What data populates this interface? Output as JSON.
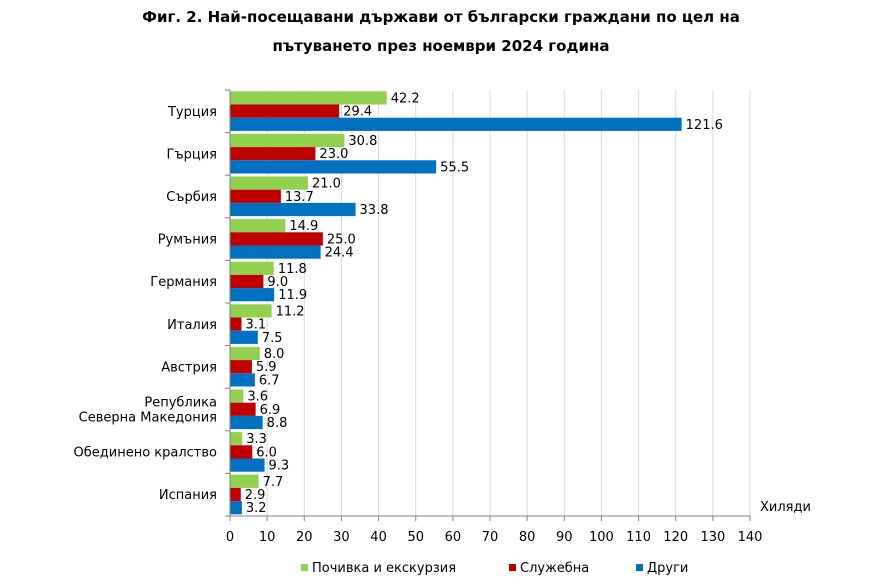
{
  "title_line1": "Фиг. 2. Най-посещавани държави от български граждани по цел на",
  "title_line2": "пътуването през ноември 2024 година",
  "chart_data": {
    "type": "bar",
    "orientation": "horizontal",
    "categories": [
      "Турция",
      "Гърция",
      "Сърбия",
      "Румъния",
      "Германия",
      "Италия",
      "Австрия",
      "Република Северна Македония",
      "Обединено кралство",
      "Испания"
    ],
    "category_label_lines": [
      [
        "Турция"
      ],
      [
        "Гърция"
      ],
      [
        "Сърбия"
      ],
      [
        "Румъния"
      ],
      [
        "Германия"
      ],
      [
        "Италия"
      ],
      [
        "Австрия"
      ],
      [
        "Република",
        "Северна Македония"
      ],
      [
        "Обединено кралство"
      ],
      [
        "Испания"
      ]
    ],
    "series": [
      {
        "name": "Почивка и екскурзия",
        "color": "#92D050",
        "values": [
          42.2,
          30.8,
          21.0,
          14.9,
          11.8,
          11.2,
          8.0,
          3.6,
          3.3,
          7.7
        ],
        "labels": [
          "42.2",
          "30.8",
          "21.0",
          "14.9",
          "11.8",
          "11.2",
          "8.0",
          "3.6",
          "3.3",
          "7.7"
        ]
      },
      {
        "name": "Служебна",
        "color": "#C00000",
        "values": [
          29.4,
          23.0,
          13.7,
          25.0,
          9.0,
          3.1,
          5.9,
          6.9,
          6.0,
          2.9
        ],
        "labels": [
          "29.4",
          "23.0",
          "13.7",
          "25.0",
          "9.0",
          "3.1",
          "5.9",
          "6.9",
          "6.0",
          "2.9"
        ]
      },
      {
        "name": "Други",
        "color": "#0070C0",
        "values": [
          121.6,
          55.5,
          33.8,
          24.4,
          11.9,
          7.5,
          6.7,
          8.8,
          9.3,
          3.2
        ],
        "labels": [
          "121.6",
          "55.5",
          "33.8",
          "24.4",
          "11.9",
          "7.5",
          "6.7",
          "8.8",
          "9.3",
          "3.2"
        ]
      }
    ],
    "xlim": [
      0,
      140
    ],
    "xticks": [
      "0",
      "10",
      "20",
      "30",
      "40",
      "50",
      "60",
      "70",
      "80",
      "90",
      "100",
      "110",
      "120",
      "130",
      "140"
    ],
    "xlabel": "Хиляди",
    "legend_position": "bottom",
    "grid": true
  }
}
